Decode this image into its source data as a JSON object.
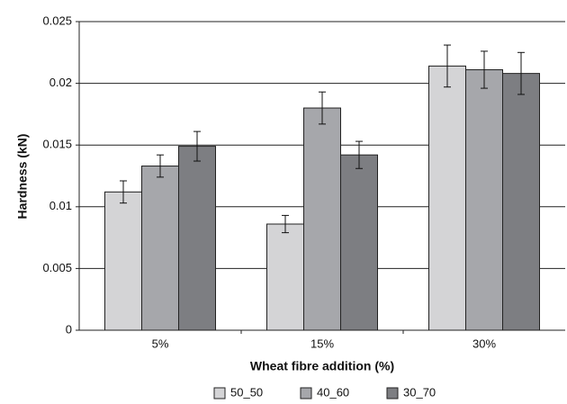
{
  "chart_data": {
    "type": "bar",
    "xlabel": "Wheat fibre addition (%)",
    "ylabel": "Hardness (kN)",
    "categories": [
      "5%",
      "15%",
      "30%"
    ],
    "series": [
      {
        "name": "50_50",
        "color": "#d4d4d6",
        "values": [
          0.0112,
          0.0086,
          0.0214
        ],
        "errors": [
          0.0009,
          0.0007,
          0.0017
        ]
      },
      {
        "name": "40_60",
        "color": "#a6a7ab",
        "values": [
          0.0133,
          0.018,
          0.0211
        ],
        "errors": [
          0.0009,
          0.0013,
          0.0015
        ]
      },
      {
        "name": "30_70",
        "color": "#7d7e82",
        "values": [
          0.0149,
          0.0142,
          0.0208
        ],
        "errors": [
          0.0012,
          0.0011,
          0.0017
        ]
      }
    ],
    "ylim": [
      0,
      0.025
    ],
    "yticks": [
      0,
      0.005,
      0.01,
      0.015,
      0.02,
      0.025
    ],
    "grid": true,
    "legend": "bottom"
  }
}
